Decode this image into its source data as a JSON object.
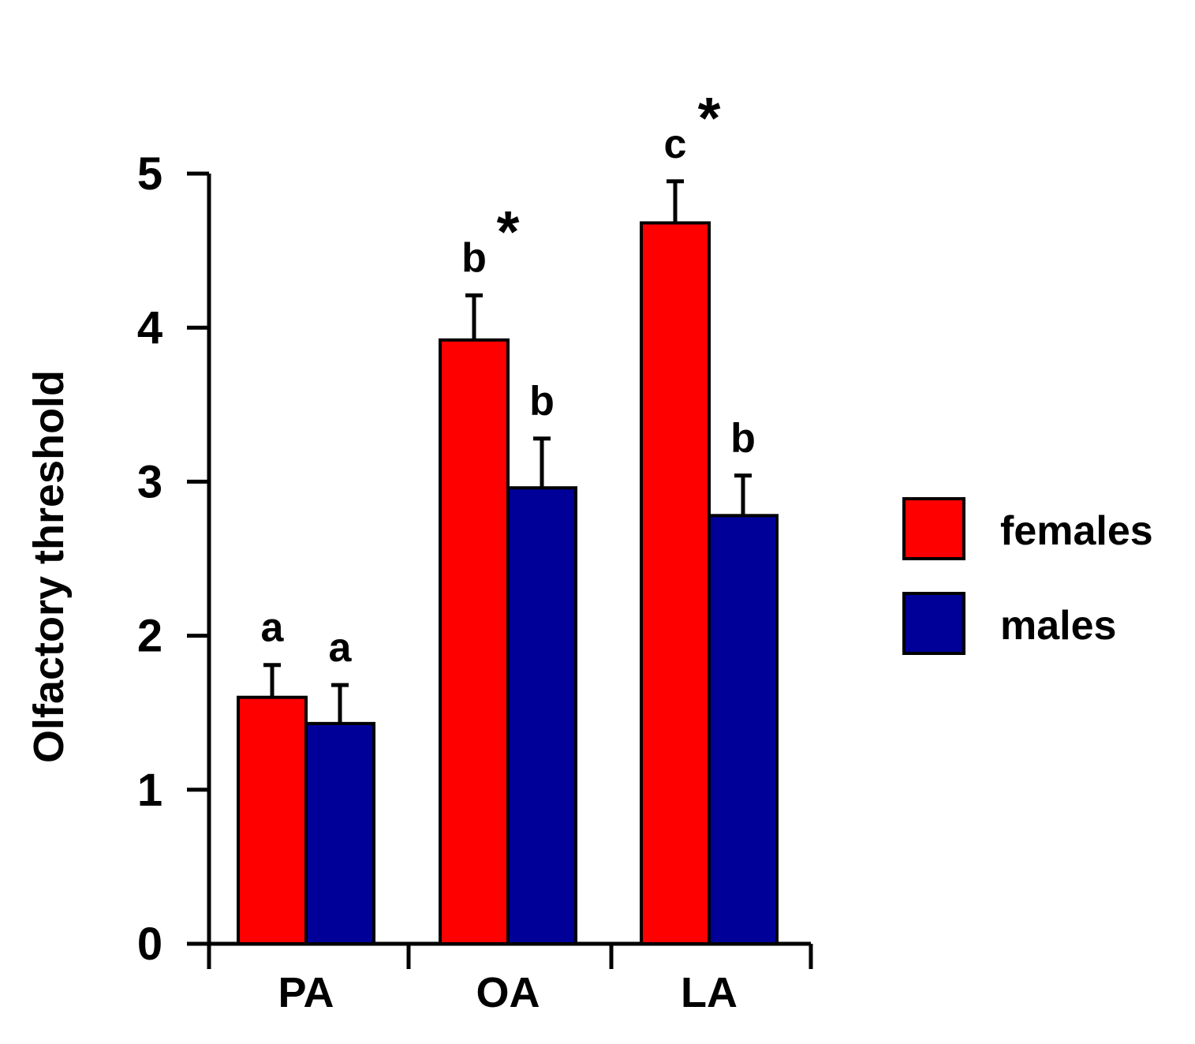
{
  "chart_data": {
    "type": "bar",
    "title": "",
    "xlabel": "",
    "ylabel": "Olfactory threshold",
    "ylim": [
      0,
      5
    ],
    "yticks": [
      0,
      1,
      2,
      3,
      4,
      5
    ],
    "categories": [
      "PA",
      "OA",
      "LA"
    ],
    "series": [
      {
        "name": "females",
        "color": "#ff0000",
        "values": [
          1.6,
          3.92,
          4.68
        ],
        "errors": [
          0.21,
          0.29,
          0.27
        ],
        "labels": [
          "a",
          "b",
          "c"
        ]
      },
      {
        "name": "males",
        "color": "#000099",
        "values": [
          1.43,
          2.96,
          2.78
        ],
        "errors": [
          0.25,
          0.32,
          0.26
        ],
        "labels": [
          "a",
          "b",
          "b"
        ]
      }
    ],
    "significance": [
      "",
      "*",
      "*"
    ],
    "legend_position": "right",
    "grid": false
  }
}
